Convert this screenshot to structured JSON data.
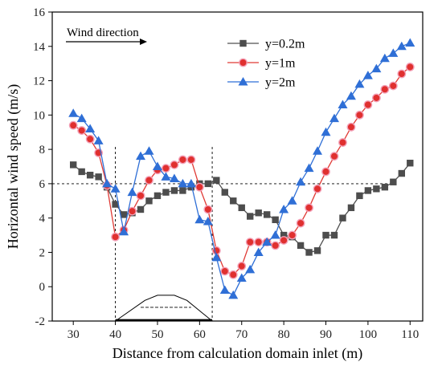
{
  "chart_data": {
    "type": "line",
    "title": "",
    "xlabel": "Distance from calculation domain inlet (m)",
    "ylabel": "Horizontal wind speed (m/s)",
    "xlim": [
      25,
      113
    ],
    "ylim": [
      -2,
      16
    ],
    "xticks": [
      30,
      40,
      50,
      60,
      70,
      80,
      90,
      100,
      110
    ],
    "yticks": [
      -2,
      0,
      2,
      4,
      6,
      8,
      10,
      12,
      14,
      16
    ],
    "annotation": "Wind direction",
    "legend_position": "top-right",
    "reference_lines": {
      "horizontal_y": 6,
      "vertical_x": [
        40,
        63
      ]
    },
    "hill_profile": {
      "outer": [
        [
          40,
          -2
        ],
        [
          47,
          -0.8
        ],
        [
          50,
          -0.5
        ],
        [
          54,
          -0.5
        ],
        [
          57,
          -0.8
        ],
        [
          63,
          -2
        ]
      ],
      "inner_line_y": -1.2,
      "inner_line_x": [
        46,
        58
      ]
    },
    "series": [
      {
        "name": "y=0.2m",
        "color": "#4d4d4d",
        "marker": "square",
        "x": [
          30,
          32,
          34,
          36,
          38,
          40,
          42,
          44,
          46,
          48,
          50,
          52,
          54,
          56,
          58,
          60,
          62,
          64,
          66,
          68,
          70,
          72,
          74,
          76,
          78,
          80,
          82,
          84,
          86,
          88,
          90,
          92,
          94,
          96,
          98,
          100,
          102,
          104,
          106,
          108,
          110
        ],
        "values": [
          7.1,
          6.7,
          6.5,
          6.4,
          5.8,
          4.8,
          4.2,
          4.3,
          4.5,
          5.0,
          5.3,
          5.5,
          5.6,
          5.6,
          5.8,
          6.0,
          6.0,
          6.2,
          5.5,
          5.0,
          4.6,
          4.1,
          4.3,
          4.2,
          3.9,
          3.0,
          2.9,
          2.4,
          2.0,
          2.1,
          3.0,
          3.0,
          4.0,
          4.6,
          5.3,
          5.6,
          5.7,
          5.8,
          6.1,
          6.6,
          7.2
        ]
      },
      {
        "name": "y=1m",
        "color": "#e0302f",
        "marker": "circle",
        "x": [
          30,
          32,
          34,
          36,
          38,
          40,
          42,
          44,
          46,
          48,
          50,
          52,
          54,
          56,
          58,
          60,
          62,
          64,
          66,
          68,
          70,
          72,
          74,
          76,
          78,
          80,
          82,
          84,
          86,
          88,
          90,
          92,
          94,
          96,
          98,
          100,
          102,
          104,
          106,
          108,
          110
        ],
        "values": [
          9.4,
          9.1,
          8.6,
          7.8,
          5.9,
          2.9,
          3.3,
          4.4,
          5.3,
          6.2,
          6.8,
          6.9,
          7.1,
          7.4,
          7.4,
          5.8,
          4.5,
          2.1,
          0.9,
          0.7,
          1.2,
          2.6,
          2.6,
          2.6,
          2.4,
          2.7,
          3.0,
          3.7,
          4.6,
          5.7,
          6.7,
          7.6,
          8.4,
          9.3,
          10.0,
          10.6,
          11.0,
          11.5,
          11.7,
          12.4,
          12.8
        ]
      },
      {
        "name": "y=2m",
        "color": "#2f6fd6",
        "marker": "triangle",
        "x": [
          30,
          32,
          34,
          36,
          38,
          40,
          42,
          44,
          46,
          48,
          50,
          52,
          54,
          56,
          58,
          60,
          62,
          64,
          66,
          68,
          70,
          72,
          74,
          76,
          78,
          80,
          82,
          84,
          86,
          88,
          90,
          92,
          94,
          96,
          98,
          100,
          102,
          104,
          106,
          108,
          110
        ],
        "values": [
          10.1,
          9.8,
          9.2,
          8.5,
          6.0,
          5.7,
          3.2,
          5.5,
          7.6,
          7.9,
          7.0,
          6.4,
          6.3,
          6.0,
          6.0,
          3.9,
          3.8,
          1.7,
          -0.2,
          -0.5,
          0.5,
          1.0,
          2.0,
          2.6,
          3.0,
          4.5,
          5.0,
          6.1,
          6.9,
          7.9,
          9.0,
          9.8,
          10.6,
          11.1,
          11.8,
          12.3,
          12.7,
          13.3,
          13.6,
          14.0,
          14.2
        ]
      }
    ]
  }
}
